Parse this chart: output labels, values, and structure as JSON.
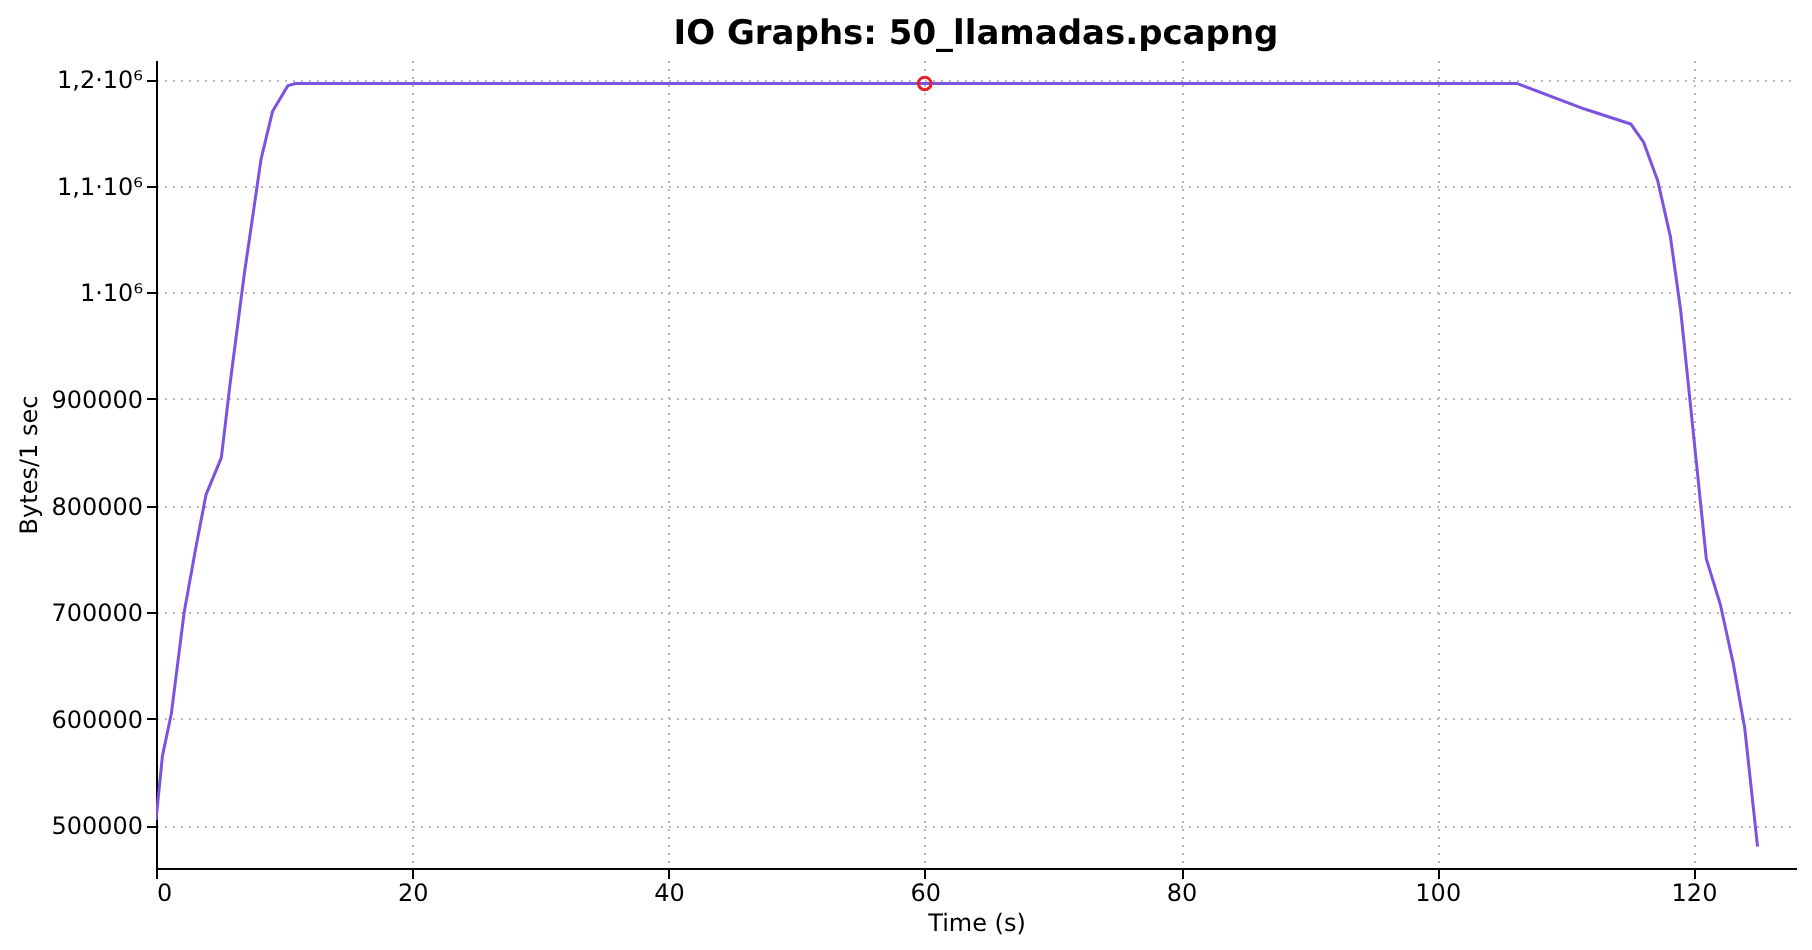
{
  "chart_data": {
    "type": "line",
    "title": "IO Graphs: 50_llamadas.pcapng",
    "xlabel": "Time (s)",
    "ylabel": "Bytes/1 sec",
    "xlim": [
      0,
      128
    ],
    "xticks": [
      0,
      20,
      40,
      60,
      80,
      100,
      120
    ],
    "ylim": [
      460000,
      1218000
    ],
    "yticks": [
      500000,
      600000,
      700000,
      800000,
      900000,
      {
        "value": 1000000,
        "label": "1·10⁶"
      },
      {
        "value": 1100000,
        "label": "1,1·10⁶"
      },
      {
        "value": 1200000,
        "label": "1,2·10⁶"
      }
    ],
    "grid": true,
    "line_style": "solid",
    "series": [
      {
        "color": "#7c52e0",
        "x": [
          0,
          0.5,
          1.2,
          2.2,
          3.1,
          3.9,
          5.1,
          5.8,
          6.9,
          8.2,
          9.1,
          10.3,
          10.9,
          20,
          40,
          60,
          80,
          100,
          106.2,
          111.5,
          115.1,
          116.1,
          117.2,
          118.2,
          119.0,
          119.8,
          121.0,
          122.1,
          123.1,
          124.0,
          125.0
        ],
        "values": [
          505000,
          565000,
          605000,
          700000,
          760000,
          810000,
          845000,
          916000,
          1018000,
          1125000,
          1170000,
          1194000,
          1196000,
          1196000,
          1196000,
          1196000,
          1196000,
          1196000,
          1196000,
          1172000,
          1158000,
          1141000,
          1105000,
          1052000,
          983000,
          890000,
          750000,
          707000,
          652000,
          591000,
          480000
        ]
      },
      {
        "type": "scatter",
        "color": "#e8202a",
        "marker": "circle",
        "x": [
          60
        ],
        "values": [
          1196000
        ]
      }
    ]
  }
}
